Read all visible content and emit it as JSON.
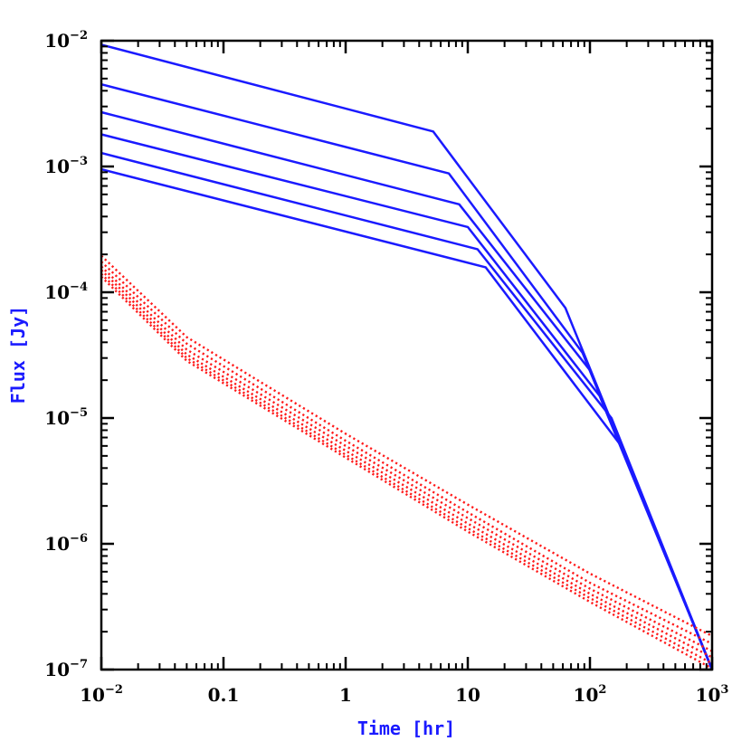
{
  "chart_data": {
    "type": "line",
    "xlabel": "Time [hr]",
    "ylabel": "Flux [Jy]",
    "x_scale": "log",
    "y_scale": "log",
    "xlim": [
      0.01,
      1000
    ],
    "ylim": [
      1e-07,
      0.01
    ],
    "x_ticks": [
      {
        "value": 0.01,
        "base": "10",
        "exp": "−2"
      },
      {
        "value": 0.1,
        "base": "0.1",
        "exp": ""
      },
      {
        "value": 1,
        "base": "1",
        "exp": ""
      },
      {
        "value": 10,
        "base": "10",
        "exp": ""
      },
      {
        "value": 100,
        "base": "10",
        "exp": "2"
      },
      {
        "value": 1000,
        "base": "10",
        "exp": "3"
      }
    ],
    "y_ticks": [
      {
        "value": 1e-07,
        "base": "10",
        "exp": "−7"
      },
      {
        "value": 1e-06,
        "base": "10",
        "exp": "−6"
      },
      {
        "value": 1e-05,
        "base": "10",
        "exp": "−5"
      },
      {
        "value": 0.0001,
        "base": "10",
        "exp": "−4"
      },
      {
        "value": 0.001,
        "base": "10",
        "exp": "−3"
      },
      {
        "value": 0.01,
        "base": "10",
        "exp": "−2"
      }
    ],
    "grid": false,
    "series": [
      {
        "style": "solid",
        "color": "#1a1aff",
        "points": [
          [
            0.01,
            0.0093
          ],
          [
            5.2,
            0.0019
          ],
          [
            63,
            7.5e-05
          ],
          [
            1000,
            1e-07
          ]
        ]
      },
      {
        "style": "solid",
        "color": "#1a1aff",
        "points": [
          [
            0.01,
            0.0045
          ],
          [
            7,
            0.00088
          ],
          [
            87,
            3.3e-05
          ],
          [
            1000,
            1e-07
          ]
        ]
      },
      {
        "style": "solid",
        "color": "#1a1aff",
        "points": [
          [
            0.01,
            0.0027
          ],
          [
            8.5,
            0.0005
          ],
          [
            100,
            2.4e-05
          ],
          [
            1000,
            1e-07
          ]
        ]
      },
      {
        "style": "solid",
        "color": "#1a1aff",
        "points": [
          [
            0.01,
            0.0018
          ],
          [
            10,
            0.00033
          ],
          [
            120,
            1.5e-05
          ],
          [
            1000,
            1e-07
          ]
        ]
      },
      {
        "style": "solid",
        "color": "#1a1aff",
        "points": [
          [
            0.01,
            0.00128
          ],
          [
            12,
            0.00022
          ],
          [
            150,
            1e-05
          ],
          [
            1000,
            1e-07
          ]
        ]
      },
      {
        "style": "solid",
        "color": "#1a1aff",
        "points": [
          [
            0.01,
            0.00095
          ],
          [
            14,
            0.000158
          ],
          [
            180,
            6e-06
          ],
          [
            1000,
            1e-07
          ]
        ]
      },
      {
        "style": "dotted",
        "color": "#ff1a1a",
        "points": [
          [
            0.01,
            0.000195
          ],
          [
            0.05,
            4.4e-05
          ],
          [
            1,
            7.5e-06
          ],
          [
            10,
            2.05e-06
          ],
          [
            100,
            5.8e-07
          ],
          [
            1000,
            1.85e-07
          ]
        ]
      },
      {
        "style": "dotted",
        "color": "#ff1a1a",
        "points": [
          [
            0.01,
            0.000175
          ],
          [
            0.05,
            3.9e-05
          ],
          [
            1,
            6.6e-06
          ],
          [
            10,
            1.78e-06
          ],
          [
            100,
            4.9e-07
          ],
          [
            1000,
            1.6e-07
          ]
        ]
      },
      {
        "style": "dotted",
        "color": "#ff1a1a",
        "points": [
          [
            0.01,
            0.00016
          ],
          [
            0.05,
            3.5e-05
          ],
          [
            1,
            6e-06
          ],
          [
            10,
            1.6e-06
          ],
          [
            100,
            4.4e-07
          ],
          [
            1000,
            1.4e-07
          ]
        ]
      },
      {
        "style": "dotted",
        "color": "#ff1a1a",
        "points": [
          [
            0.01,
            0.00015
          ],
          [
            0.05,
            3.2e-05
          ],
          [
            1,
            5.5e-06
          ],
          [
            10,
            1.45e-06
          ],
          [
            100,
            4e-07
          ],
          [
            1000,
            1.25e-07
          ]
        ]
      },
      {
        "style": "dotted",
        "color": "#ff1a1a",
        "points": [
          [
            0.01,
            0.00014
          ],
          [
            0.05,
            3e-05
          ],
          [
            1,
            5.1e-06
          ],
          [
            10,
            1.33e-06
          ],
          [
            100,
            3.7e-07
          ],
          [
            1000,
            1.12e-07
          ]
        ]
      },
      {
        "style": "dotted",
        "color": "#ff1a1a",
        "points": [
          [
            0.01,
            0.000133
          ],
          [
            0.05,
            2.85e-05
          ],
          [
            1,
            4.85e-06
          ],
          [
            10,
            1.25e-06
          ],
          [
            100,
            3.45e-07
          ],
          [
            1000,
            1.02e-07
          ]
        ]
      }
    ]
  }
}
